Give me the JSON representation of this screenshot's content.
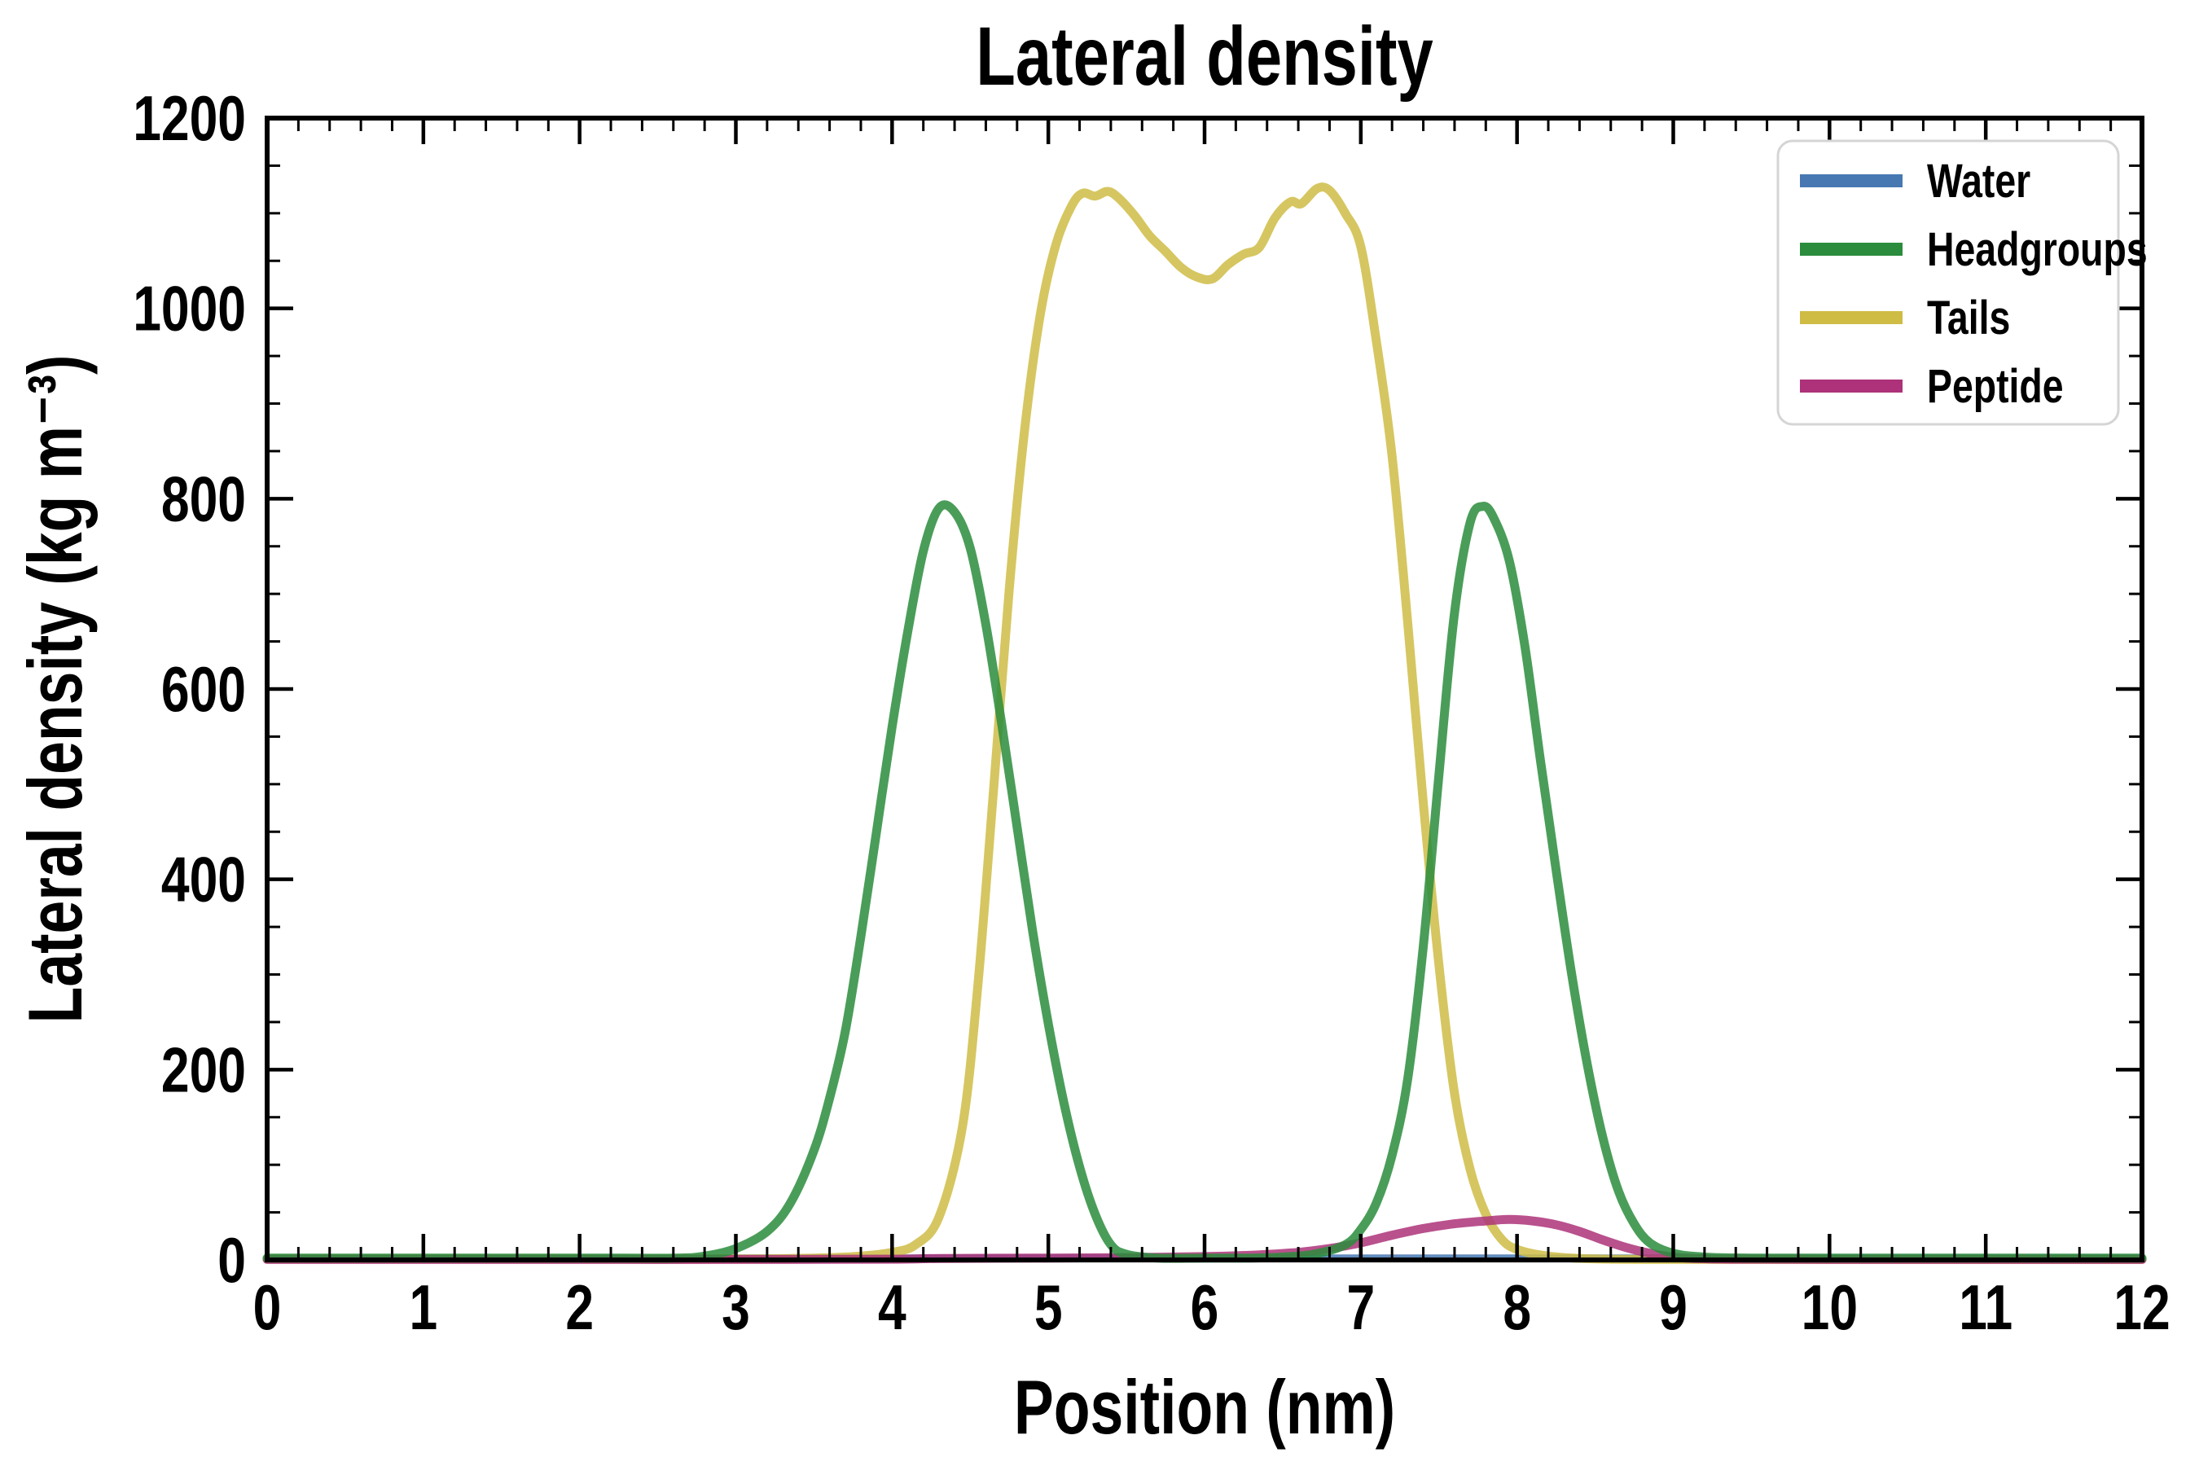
{
  "figure": {
    "title": "Lateral density"
  },
  "chart_data": {
    "type": "line",
    "title": "Lateral density",
    "xlabel": "Position (nm)",
    "ylabel": "Lateral density (kg m⁻³)",
    "xlim": [
      0,
      12
    ],
    "ylim": [
      0,
      1200
    ],
    "xticks": [
      0,
      1,
      2,
      3,
      4,
      5,
      6,
      7,
      8,
      9,
      10,
      11,
      12
    ],
    "yticks": [
      0,
      200,
      400,
      600,
      800,
      1000,
      1200
    ],
    "x_minor_step": 0.2,
    "y_minor_step": 50,
    "grid": false,
    "legend_position": "upper right",
    "background": "#ffffff",
    "text_color": "#000000",
    "series": [
      {
        "name": "Water",
        "color": "#4778B2",
        "points": [
          [
            0,
            2
          ],
          [
            2,
            2
          ],
          [
            4,
            2
          ],
          [
            6,
            2
          ],
          [
            8,
            2
          ],
          [
            10,
            2
          ],
          [
            12,
            2
          ]
        ]
      },
      {
        "name": "Headgroups",
        "color": "#2A8C3C",
        "points": [
          [
            0,
            2
          ],
          [
            1,
            2
          ],
          [
            2,
            2
          ],
          [
            2.6,
            2
          ],
          [
            2.8,
            4
          ],
          [
            3.0,
            12
          ],
          [
            3.2,
            30
          ],
          [
            3.35,
            60
          ],
          [
            3.5,
            115
          ],
          [
            3.6,
            170
          ],
          [
            3.7,
            240
          ],
          [
            3.8,
            340
          ],
          [
            3.9,
            450
          ],
          [
            4.0,
            560
          ],
          [
            4.1,
            660
          ],
          [
            4.2,
            745
          ],
          [
            4.3,
            790
          ],
          [
            4.4,
            786
          ],
          [
            4.5,
            748
          ],
          [
            4.6,
            668
          ],
          [
            4.7,
            565
          ],
          [
            4.8,
            455
          ],
          [
            4.9,
            345
          ],
          [
            5.0,
            248
          ],
          [
            5.1,
            165
          ],
          [
            5.2,
            98
          ],
          [
            5.3,
            48
          ],
          [
            5.4,
            16
          ],
          [
            5.5,
            6
          ],
          [
            5.7,
            2
          ],
          [
            6.0,
            2
          ],
          [
            6.3,
            2
          ],
          [
            6.5,
            3
          ],
          [
            6.7,
            6
          ],
          [
            6.9,
            16
          ],
          [
            7.0,
            32
          ],
          [
            7.1,
            60
          ],
          [
            7.2,
            110
          ],
          [
            7.3,
            190
          ],
          [
            7.4,
            330
          ],
          [
            7.5,
            510
          ],
          [
            7.6,
            680
          ],
          [
            7.7,
            775
          ],
          [
            7.78,
            792
          ],
          [
            7.85,
            780
          ],
          [
            7.95,
            735
          ],
          [
            8.05,
            645
          ],
          [
            8.15,
            525
          ],
          [
            8.25,
            410
          ],
          [
            8.35,
            300
          ],
          [
            8.45,
            205
          ],
          [
            8.55,
            128
          ],
          [
            8.65,
            72
          ],
          [
            8.75,
            38
          ],
          [
            8.85,
            18
          ],
          [
            9.0,
            7
          ],
          [
            9.2,
            3
          ],
          [
            9.5,
            2
          ],
          [
            10,
            2
          ],
          [
            11,
            2
          ],
          [
            12,
            2
          ]
        ]
      },
      {
        "name": "Tails",
        "color": "#CFBC45",
        "points": [
          [
            0,
            1
          ],
          [
            1,
            1
          ],
          [
            2,
            1
          ],
          [
            3,
            1
          ],
          [
            3.5,
            2
          ],
          [
            3.8,
            4
          ],
          [
            4.0,
            8
          ],
          [
            4.15,
            16
          ],
          [
            4.3,
            45
          ],
          [
            4.45,
            140
          ],
          [
            4.55,
            290
          ],
          [
            4.65,
            495
          ],
          [
            4.75,
            705
          ],
          [
            4.85,
            875
          ],
          [
            4.95,
            995
          ],
          [
            5.05,
            1068
          ],
          [
            5.15,
            1108
          ],
          [
            5.22,
            1121
          ],
          [
            5.3,
            1118
          ],
          [
            5.38,
            1123
          ],
          [
            5.45,
            1116
          ],
          [
            5.55,
            1098
          ],
          [
            5.65,
            1076
          ],
          [
            5.75,
            1060
          ],
          [
            5.85,
            1043
          ],
          [
            5.95,
            1033
          ],
          [
            6.05,
            1031
          ],
          [
            6.15,
            1046
          ],
          [
            6.25,
            1057
          ],
          [
            6.35,
            1064
          ],
          [
            6.45,
            1095
          ],
          [
            6.55,
            1112
          ],
          [
            6.62,
            1110
          ],
          [
            6.72,
            1126
          ],
          [
            6.8,
            1124
          ],
          [
            6.9,
            1100
          ],
          [
            7.0,
            1065
          ],
          [
            7.1,
            965
          ],
          [
            7.2,
            845
          ],
          [
            7.3,
            670
          ],
          [
            7.4,
            480
          ],
          [
            7.5,
            310
          ],
          [
            7.6,
            175
          ],
          [
            7.7,
            95
          ],
          [
            7.8,
            48
          ],
          [
            7.9,
            22
          ],
          [
            8.0,
            11
          ],
          [
            8.2,
            4
          ],
          [
            8.5,
            1
          ],
          [
            9,
            0.5
          ],
          [
            10,
            0.5
          ],
          [
            11,
            0.5
          ],
          [
            12,
            0.5
          ]
        ]
      },
      {
        "name": "Peptide",
        "color": "#AD3279",
        "points": [
          [
            0,
            0.5
          ],
          [
            1,
            0.5
          ],
          [
            2,
            0.5
          ],
          [
            3,
            0.5
          ],
          [
            4,
            0.8
          ],
          [
            4.3,
            1.5
          ],
          [
            5,
            2
          ],
          [
            5.5,
            2.5
          ],
          [
            6,
            3.5
          ],
          [
            6.3,
            5
          ],
          [
            6.6,
            8
          ],
          [
            6.8,
            12
          ],
          [
            7.0,
            18
          ],
          [
            7.2,
            26
          ],
          [
            7.4,
            33
          ],
          [
            7.6,
            38
          ],
          [
            7.8,
            41
          ],
          [
            7.95,
            42.5
          ],
          [
            8.1,
            41
          ],
          [
            8.25,
            37
          ],
          [
            8.4,
            30
          ],
          [
            8.55,
            21
          ],
          [
            8.7,
            13
          ],
          [
            8.85,
            7
          ],
          [
            9.0,
            3
          ],
          [
            9.15,
            1.5
          ],
          [
            9.4,
            0.8
          ],
          [
            10,
            0.5
          ],
          [
            11,
            0.5
          ],
          [
            12,
            0.5
          ]
        ]
      }
    ]
  }
}
